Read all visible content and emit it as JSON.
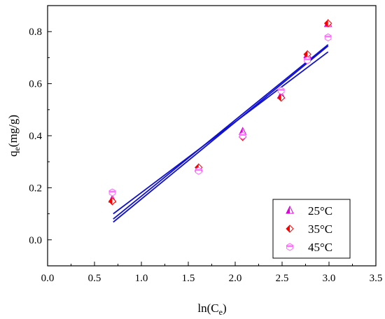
{
  "chart_data": {
    "type": "scatter",
    "xlabel": {
      "main": "ln(C",
      "sub": "e",
      "tail": ")"
    },
    "ylabel": {
      "main": "q",
      "sub": "e",
      "tail": "(mg/g)"
    },
    "xlim": [
      0.0,
      3.5
    ],
    "ylim": [
      -0.1,
      0.9
    ],
    "x_ticks": [
      "0.0",
      "0.5",
      "1.0",
      "1.5",
      "2.0",
      "2.5",
      "3.0",
      "3.5"
    ],
    "y_ticks": [
      "0.0",
      "0.2",
      "0.4",
      "0.6",
      "0.8"
    ],
    "x_tick_values": [
      0.0,
      0.5,
      1.0,
      1.5,
      2.0,
      2.5,
      3.0,
      3.5
    ],
    "y_tick_values": [
      0.0,
      0.2,
      0.4,
      0.6,
      0.8
    ],
    "grid": false,
    "legend_position": "bottom-right",
    "series": [
      {
        "name": "25°C",
        "marker": "triangle",
        "color": "#e000e0",
        "points": [
          [
            0.69,
            0.155
          ],
          [
            1.61,
            0.275
          ],
          [
            2.08,
            0.415
          ],
          [
            2.49,
            0.555
          ],
          [
            2.77,
            0.71
          ],
          [
            2.99,
            0.83
          ]
        ],
        "fit": [
          [
            0.7,
            0.08
          ],
          [
            2.99,
            0.75
          ]
        ]
      },
      {
        "name": "35°C",
        "marker": "diamond",
        "color": "#ff0000",
        "points": [
          [
            0.69,
            0.148
          ],
          [
            1.61,
            0.278
          ],
          [
            2.08,
            0.395
          ],
          [
            2.49,
            0.546
          ],
          [
            2.77,
            0.713
          ],
          [
            2.99,
            0.832
          ]
        ],
        "fit": [
          [
            0.7,
            0.068
          ],
          [
            2.99,
            0.745
          ]
        ]
      },
      {
        "name": "45°C",
        "marker": "hexagon",
        "color": "#ff66ff",
        "points": [
          [
            0.69,
            0.182
          ],
          [
            1.61,
            0.265
          ],
          [
            2.08,
            0.4
          ],
          [
            2.49,
            0.573
          ],
          [
            2.77,
            0.69
          ],
          [
            2.99,
            0.778
          ]
        ],
        "fit": [
          [
            0.7,
            0.1
          ],
          [
            2.99,
            0.722
          ]
        ]
      }
    ]
  }
}
